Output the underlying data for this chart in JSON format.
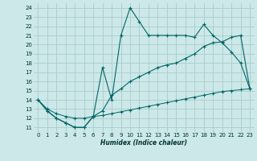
{
  "xlabel": "Humidex (Indice chaleur)",
  "bg_color": "#cce8e8",
  "grid_color": "#aacccc",
  "line_color": "#006666",
  "xlim": [
    -0.5,
    23.5
  ],
  "ylim": [
    10.5,
    24.5
  ],
  "xticks": [
    0,
    1,
    2,
    3,
    4,
    5,
    6,
    7,
    8,
    9,
    10,
    11,
    12,
    13,
    14,
    15,
    16,
    17,
    18,
    19,
    20,
    21,
    22,
    23
  ],
  "yticks": [
    11,
    12,
    13,
    14,
    15,
    16,
    17,
    18,
    19,
    20,
    21,
    22,
    23,
    24
  ],
  "series1_x": [
    0,
    1,
    2,
    3,
    4,
    5,
    6,
    7,
    8,
    9,
    10,
    11,
    12,
    13,
    14,
    15,
    16,
    17,
    18,
    19,
    20,
    21,
    22,
    23
  ],
  "series1_y": [
    14.0,
    12.8,
    12.0,
    11.5,
    11.0,
    11.0,
    12.2,
    17.5,
    14.0,
    21.0,
    24.0,
    22.5,
    21.0,
    21.0,
    21.0,
    21.0,
    21.0,
    20.8,
    22.2,
    21.0,
    20.2,
    19.2,
    18.0,
    15.2
  ],
  "series2_x": [
    0,
    1,
    2,
    3,
    4,
    5,
    6,
    7,
    8,
    9,
    10,
    11,
    12,
    13,
    14,
    15,
    16,
    17,
    18,
    19,
    20,
    21,
    22,
    23
  ],
  "series2_y": [
    14.0,
    12.8,
    12.0,
    11.5,
    11.0,
    11.0,
    12.2,
    12.8,
    14.5,
    15.2,
    16.0,
    16.5,
    17.0,
    17.5,
    17.8,
    18.0,
    18.5,
    19.0,
    19.8,
    20.2,
    20.3,
    20.8,
    21.0,
    15.2
  ],
  "series3_x": [
    0,
    1,
    2,
    3,
    4,
    5,
    6,
    7,
    8,
    9,
    10,
    11,
    12,
    13,
    14,
    15,
    16,
    17,
    18,
    19,
    20,
    21,
    22,
    23
  ],
  "series3_y": [
    14.0,
    13.0,
    12.5,
    12.2,
    12.0,
    12.0,
    12.2,
    12.3,
    12.5,
    12.7,
    12.9,
    13.1,
    13.3,
    13.5,
    13.7,
    13.9,
    14.1,
    14.3,
    14.5,
    14.7,
    14.9,
    15.0,
    15.1,
    15.2
  ]
}
